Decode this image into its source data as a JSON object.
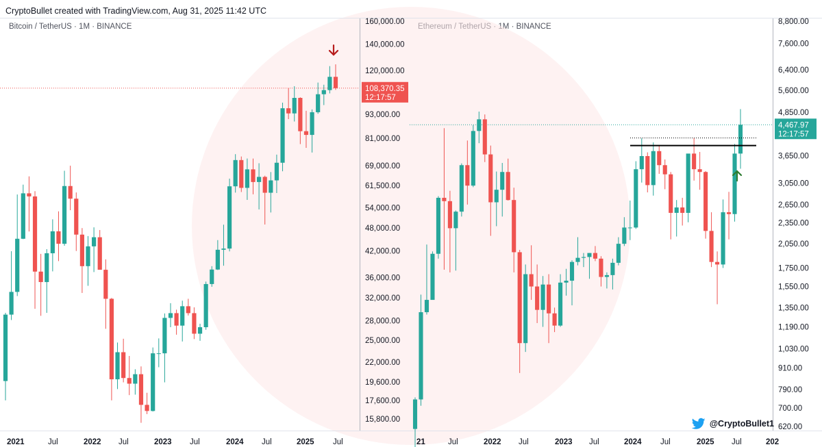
{
  "header": {
    "text": "CryptoBullet created with TradingView.com, Aug 31, 2025 11:42 UTC"
  },
  "credit": {
    "handle": "@CryptoBullet1",
    "icon": "twitter-bird-icon"
  },
  "colors": {
    "up": "#26a69a",
    "down": "#ef5350",
    "bg_circle": "#fde8e8",
    "arrow_down": "#b71c1c",
    "arrow_up": "#2e7d32"
  },
  "chart_data": [
    {
      "type": "candlestick",
      "symbol": "Bitcoin / TetherUS · 1M · BINANCE",
      "scale": "log",
      "y_ticks": [
        "160,000.00",
        "140,000.00",
        "120,000.00",
        "93,000.00",
        "81,000.00",
        "69,000.00",
        "61,500.00",
        "54,000.00",
        "48,000.00",
        "42,000.00",
        "36,000.00",
        "32,000.00",
        "28,000.00",
        "25,000.00",
        "22,000.00",
        "19,600.00",
        "17,600.00",
        "15,800.00"
      ],
      "x_ticks": [
        "2021",
        "Jul",
        "2022",
        "Jul",
        "2023",
        "Jul",
        "2024",
        "Jul",
        "2025",
        "Jul"
      ],
      "last_price": "108,370.35",
      "countdown": "12:17:57",
      "annotations": [
        "down arrow above last candle"
      ],
      "candles": [
        {
          "t": "2020-12",
          "o": 19700,
          "h": 29300,
          "l": 17600,
          "c": 29000
        },
        {
          "t": "2021-01",
          "o": 29000,
          "h": 41950,
          "l": 28100,
          "c": 33100
        },
        {
          "t": "2021-02",
          "o": 33100,
          "h": 58350,
          "l": 32300,
          "c": 45100
        },
        {
          "t": "2021-03",
          "o": 45100,
          "h": 61800,
          "l": 45000,
          "c": 58750
        },
        {
          "t": "2021-04",
          "o": 58750,
          "h": 64850,
          "l": 47050,
          "c": 57700
        },
        {
          "t": "2021-05",
          "o": 57700,
          "h": 59500,
          "l": 30000,
          "c": 37250
        },
        {
          "t": "2021-06",
          "o": 37250,
          "h": 41300,
          "l": 28800,
          "c": 35050
        },
        {
          "t": "2021-07",
          "o": 35050,
          "h": 42450,
          "l": 29300,
          "c": 41450
        },
        {
          "t": "2021-08",
          "o": 41450,
          "h": 50500,
          "l": 37300,
          "c": 47100
        },
        {
          "t": "2021-09",
          "o": 47100,
          "h": 52900,
          "l": 39600,
          "c": 43800
        },
        {
          "t": "2021-10",
          "o": 43800,
          "h": 67000,
          "l": 43300,
          "c": 61300
        },
        {
          "t": "2021-11",
          "o": 61300,
          "h": 69000,
          "l": 53250,
          "c": 56950
        },
        {
          "t": "2021-12",
          "o": 56950,
          "h": 59050,
          "l": 42000,
          "c": 46200
        },
        {
          "t": "2022-01",
          "o": 46200,
          "h": 47990,
          "l": 32900,
          "c": 38450
        },
        {
          "t": "2022-02",
          "o": 38450,
          "h": 45800,
          "l": 34300,
          "c": 43150
        },
        {
          "t": "2022-03",
          "o": 43150,
          "h": 48200,
          "l": 37150,
          "c": 45500
        },
        {
          "t": "2022-04",
          "o": 45500,
          "h": 47450,
          "l": 37700,
          "c": 37650
        },
        {
          "t": "2022-05",
          "o": 37650,
          "h": 40000,
          "l": 26700,
          "c": 31800
        },
        {
          "t": "2022-06",
          "o": 31800,
          "h": 31950,
          "l": 17600,
          "c": 19900
        },
        {
          "t": "2022-07",
          "o": 19900,
          "h": 24650,
          "l": 18800,
          "c": 23300
        },
        {
          "t": "2022-08",
          "o": 23300,
          "h": 25200,
          "l": 19550,
          "c": 20050
        },
        {
          "t": "2022-09",
          "o": 20050,
          "h": 22800,
          "l": 18150,
          "c": 19400
        },
        {
          "t": "2022-10",
          "o": 19400,
          "h": 21100,
          "l": 18200,
          "c": 20500
        },
        {
          "t": "2022-11",
          "o": 20500,
          "h": 21450,
          "l": 15450,
          "c": 17150
        },
        {
          "t": "2022-12",
          "o": 17150,
          "h": 18400,
          "l": 16250,
          "c": 16550
        },
        {
          "t": "2023-01",
          "o": 16550,
          "h": 23950,
          "l": 16500,
          "c": 23150
        },
        {
          "t": "2023-02",
          "o": 23150,
          "h": 25250,
          "l": 21350,
          "c": 23150
        },
        {
          "t": "2023-03",
          "o": 23150,
          "h": 29200,
          "l": 19550,
          "c": 28450
        },
        {
          "t": "2023-04",
          "o": 28450,
          "h": 31000,
          "l": 26950,
          "c": 29250
        },
        {
          "t": "2023-05",
          "o": 29250,
          "h": 29850,
          "l": 25800,
          "c": 27200
        },
        {
          "t": "2023-06",
          "o": 27200,
          "h": 31450,
          "l": 24800,
          "c": 30450
        },
        {
          "t": "2023-07",
          "o": 30450,
          "h": 31800,
          "l": 28850,
          "c": 29250
        },
        {
          "t": "2023-08",
          "o": 29250,
          "h": 30250,
          "l": 25150,
          "c": 25950
        },
        {
          "t": "2023-09",
          "o": 25950,
          "h": 27500,
          "l": 24900,
          "c": 26950
        },
        {
          "t": "2023-10",
          "o": 26950,
          "h": 35150,
          "l": 26550,
          "c": 34650
        },
        {
          "t": "2023-11",
          "o": 34650,
          "h": 38450,
          "l": 34100,
          "c": 37700
        },
        {
          "t": "2023-12",
          "o": 37700,
          "h": 44750,
          "l": 37600,
          "c": 42300
        },
        {
          "t": "2024-01",
          "o": 42300,
          "h": 48950,
          "l": 38550,
          "c": 42600
        },
        {
          "t": "2024-02",
          "o": 42600,
          "h": 64000,
          "l": 41900,
          "c": 61200
        },
        {
          "t": "2024-03",
          "o": 61200,
          "h": 73800,
          "l": 59000,
          "c": 71300
        },
        {
          "t": "2024-04",
          "o": 71300,
          "h": 72800,
          "l": 59200,
          "c": 60650
        },
        {
          "t": "2024-05",
          "o": 60650,
          "h": 71950,
          "l": 56550,
          "c": 67550
        },
        {
          "t": "2024-06",
          "o": 67550,
          "h": 71950,
          "l": 58400,
          "c": 62750
        },
        {
          "t": "2024-07",
          "o": 62750,
          "h": 70000,
          "l": 53500,
          "c": 64650
        },
        {
          "t": "2024-08",
          "o": 64650,
          "h": 65100,
          "l": 49000,
          "c": 58950
        },
        {
          "t": "2024-09",
          "o": 58950,
          "h": 66500,
          "l": 52550,
          "c": 63350
        },
        {
          "t": "2024-10",
          "o": 63350,
          "h": 73600,
          "l": 58850,
          "c": 70200
        },
        {
          "t": "2024-11",
          "o": 70200,
          "h": 99600,
          "l": 66800,
          "c": 96400
        },
        {
          "t": "2024-12",
          "o": 96400,
          "h": 108350,
          "l": 90500,
          "c": 93550
        },
        {
          "t": "2025-01",
          "o": 93550,
          "h": 109600,
          "l": 89250,
          "c": 102400
        },
        {
          "t": "2025-02",
          "o": 102400,
          "h": 102750,
          "l": 78250,
          "c": 84350
        },
        {
          "t": "2025-03",
          "o": 84350,
          "h": 95000,
          "l": 76550,
          "c": 82550
        },
        {
          "t": "2025-04",
          "o": 82550,
          "h": 95750,
          "l": 74500,
          "c": 94200
        },
        {
          "t": "2025-05",
          "o": 94200,
          "h": 111950,
          "l": 93350,
          "c": 104600
        },
        {
          "t": "2025-06",
          "o": 104600,
          "h": 110550,
          "l": 98200,
          "c": 107150
        },
        {
          "t": "2025-07",
          "o": 107150,
          "h": 123200,
          "l": 105100,
          "c": 115750
        },
        {
          "t": "2025-08",
          "o": 115750,
          "h": 124450,
          "l": 107250,
          "c": 108370
        }
      ]
    },
    {
      "type": "candlestick",
      "symbol": "Ethereum / TetherUS · 1M · BINANCE",
      "scale": "log",
      "y_ticks": [
        "8,800.00",
        "7,600.00",
        "6,400.00",
        "5,600.00",
        "4,850.00",
        "3,650.00",
        "3,050.00",
        "2,650.00",
        "2,350.00",
        "2,050.00",
        "1,750.00",
        "1,550.00",
        "1,350.00",
        "1,190.00",
        "1,030.00",
        "910.00",
        "790.00",
        "700.00",
        "620.00"
      ],
      "x_ticks": [
        "21",
        "Jul",
        "2022",
        "Jul",
        "2023",
        "Jul",
        "2024",
        "Jul",
        "2025",
        "Jul",
        "202"
      ],
      "last_price": "4,467.97",
      "countdown": "12:17:57",
      "annotations": [
        "horizontal resistance line near 3,900",
        "dotted line near 4,100",
        "up arrow below last breakout"
      ],
      "candles": [
        {
          "t": "2020-12",
          "o": 610,
          "h": 750,
          "l": 480,
          "c": 740
        },
        {
          "t": "2021-01",
          "o": 740,
          "h": 1470,
          "l": 710,
          "c": 1310
        },
        {
          "t": "2021-02",
          "o": 1310,
          "h": 2040,
          "l": 1290,
          "c": 1420
        },
        {
          "t": "2021-03",
          "o": 1420,
          "h": 1950,
          "l": 1440,
          "c": 1920
        },
        {
          "t": "2021-04",
          "o": 1920,
          "h": 2800,
          "l": 1860,
          "c": 2770
        },
        {
          "t": "2021-05",
          "o": 2770,
          "h": 4370,
          "l": 1730,
          "c": 2710
        },
        {
          "t": "2021-06",
          "o": 2710,
          "h": 2900,
          "l": 1700,
          "c": 2270
        },
        {
          "t": "2021-07",
          "o": 2270,
          "h": 2550,
          "l": 1720,
          "c": 2530
        },
        {
          "t": "2021-08",
          "o": 2530,
          "h": 3470,
          "l": 2450,
          "c": 3430
        },
        {
          "t": "2021-09",
          "o": 3430,
          "h": 4030,
          "l": 2650,
          "c": 3000
        },
        {
          "t": "2021-10",
          "o": 3000,
          "h": 4460,
          "l": 2970,
          "c": 4290
        },
        {
          "t": "2021-11",
          "o": 4290,
          "h": 4870,
          "l": 3960,
          "c": 4630
        },
        {
          "t": "2021-12",
          "o": 4630,
          "h": 4780,
          "l": 3500,
          "c": 3680
        },
        {
          "t": "2022-01",
          "o": 3680,
          "h": 3900,
          "l": 2160,
          "c": 2690
        },
        {
          "t": "2022-02",
          "o": 2690,
          "h": 3290,
          "l": 2300,
          "c": 2920
        },
        {
          "t": "2022-03",
          "o": 2920,
          "h": 3480,
          "l": 2450,
          "c": 3280
        },
        {
          "t": "2022-04",
          "o": 3280,
          "h": 3580,
          "l": 2720,
          "c": 2730
        },
        {
          "t": "2022-05",
          "o": 2730,
          "h": 2960,
          "l": 1700,
          "c": 1940
        },
        {
          "t": "2022-06",
          "o": 1940,
          "h": 1970,
          "l": 880,
          "c": 1070
        },
        {
          "t": "2022-07",
          "o": 1070,
          "h": 1790,
          "l": 1010,
          "c": 1680
        },
        {
          "t": "2022-08",
          "o": 1680,
          "h": 2030,
          "l": 1420,
          "c": 1550
        },
        {
          "t": "2022-09",
          "o": 1550,
          "h": 1790,
          "l": 1220,
          "c": 1330
        },
        {
          "t": "2022-10",
          "o": 1330,
          "h": 1660,
          "l": 1190,
          "c": 1570
        },
        {
          "t": "2022-11",
          "o": 1570,
          "h": 1680,
          "l": 1070,
          "c": 1300
        },
        {
          "t": "2022-12",
          "o": 1300,
          "h": 1350,
          "l": 1150,
          "c": 1200
        },
        {
          "t": "2023-01",
          "o": 1200,
          "h": 1680,
          "l": 1190,
          "c": 1590
        },
        {
          "t": "2023-02",
          "o": 1590,
          "h": 1740,
          "l": 1460,
          "c": 1610
        },
        {
          "t": "2023-03",
          "o": 1610,
          "h": 1840,
          "l": 1370,
          "c": 1820
        },
        {
          "t": "2023-04",
          "o": 1820,
          "h": 2140,
          "l": 1780,
          "c": 1870
        },
        {
          "t": "2023-05",
          "o": 1870,
          "h": 1930,
          "l": 1760,
          "c": 1880
        },
        {
          "t": "2023-06",
          "o": 1880,
          "h": 1930,
          "l": 1630,
          "c": 1930
        },
        {
          "t": "2023-07",
          "o": 1930,
          "h": 2020,
          "l": 1830,
          "c": 1860
        },
        {
          "t": "2023-08",
          "o": 1860,
          "h": 1890,
          "l": 1550,
          "c": 1650
        },
        {
          "t": "2023-09",
          "o": 1650,
          "h": 1700,
          "l": 1530,
          "c": 1670
        },
        {
          "t": "2023-10",
          "o": 1670,
          "h": 1860,
          "l": 1520,
          "c": 1810
        },
        {
          "t": "2023-11",
          "o": 1810,
          "h": 2140,
          "l": 1780,
          "c": 2050
        },
        {
          "t": "2023-12",
          "o": 2050,
          "h": 2440,
          "l": 2020,
          "c": 2280
        },
        {
          "t": "2024-01",
          "o": 2280,
          "h": 2720,
          "l": 2100,
          "c": 2280
        },
        {
          "t": "2024-02",
          "o": 2280,
          "h": 3520,
          "l": 2260,
          "c": 3340
        },
        {
          "t": "2024-03",
          "o": 3340,
          "h": 4090,
          "l": 3060,
          "c": 3640
        },
        {
          "t": "2024-04",
          "o": 3640,
          "h": 3730,
          "l": 2870,
          "c": 3010
        },
        {
          "t": "2024-05",
          "o": 3010,
          "h": 3980,
          "l": 2810,
          "c": 3760
        },
        {
          "t": "2024-06",
          "o": 3760,
          "h": 3890,
          "l": 3240,
          "c": 3430
        },
        {
          "t": "2024-07",
          "o": 3430,
          "h": 3560,
          "l": 2930,
          "c": 3230
        },
        {
          "t": "2024-08",
          "o": 3230,
          "h": 3280,
          "l": 2110,
          "c": 2510
        },
        {
          "t": "2024-09",
          "o": 2510,
          "h": 2730,
          "l": 2150,
          "c": 2600
        },
        {
          "t": "2024-10",
          "o": 2600,
          "h": 2770,
          "l": 2310,
          "c": 2510
        },
        {
          "t": "2024-11",
          "o": 2510,
          "h": 3680,
          "l": 2360,
          "c": 3700
        },
        {
          "t": "2024-12",
          "o": 3700,
          "h": 4100,
          "l": 3100,
          "c": 3340
        },
        {
          "t": "2025-01",
          "o": 3340,
          "h": 3740,
          "l": 2920,
          "c": 3280
        },
        {
          "t": "2025-02",
          "o": 3280,
          "h": 3300,
          "l": 2120,
          "c": 2230
        },
        {
          "t": "2025-03",
          "o": 2230,
          "h": 2520,
          "l": 1760,
          "c": 1820
        },
        {
          "t": "2025-04",
          "o": 1820,
          "h": 1950,
          "l": 1380,
          "c": 1790
        },
        {
          "t": "2025-05",
          "o": 1790,
          "h": 2740,
          "l": 1750,
          "c": 2520
        },
        {
          "t": "2025-06",
          "o": 2520,
          "h": 2880,
          "l": 2110,
          "c": 2490
        },
        {
          "t": "2025-07",
          "o": 2490,
          "h": 3940,
          "l": 2370,
          "c": 3700
        },
        {
          "t": "2025-08",
          "o": 3700,
          "h": 4950,
          "l": 3350,
          "c": 4468
        }
      ]
    }
  ]
}
